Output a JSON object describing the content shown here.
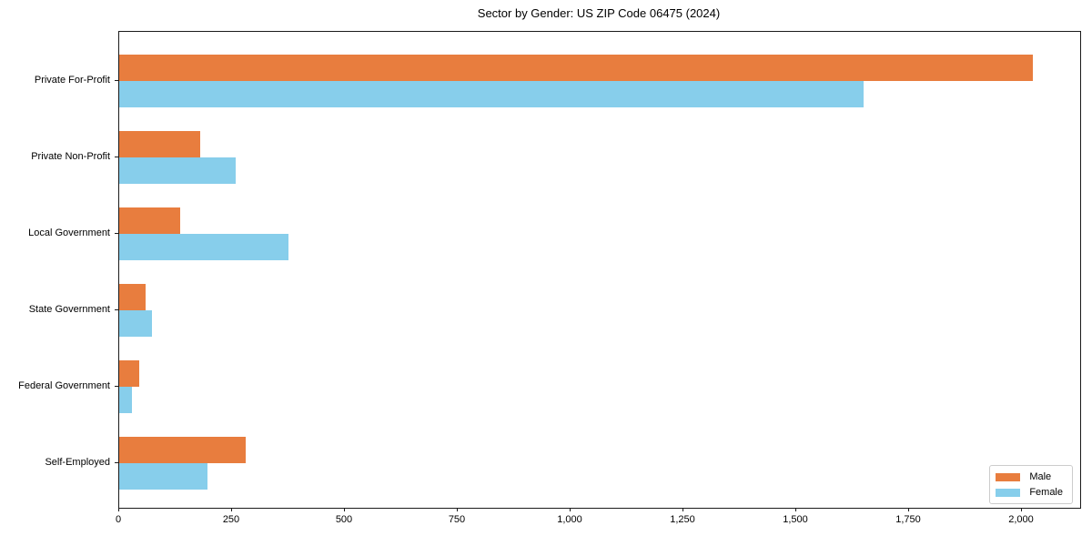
{
  "chart_data": {
    "type": "bar",
    "orientation": "horizontal",
    "title": "Sector by Gender: US ZIP Code 06475 (2024)",
    "categories": [
      "Private For-Profit",
      "Private Non-Profit",
      "Local Government",
      "State Government",
      "Federal Government",
      "Self-Employed"
    ],
    "series": [
      {
        "name": "Male",
        "color": "#e87d3e",
        "values": [
          2025,
          180,
          135,
          58,
          45,
          280
        ]
      },
      {
        "name": "Female",
        "color": "#87ceeb",
        "values": [
          1650,
          257,
          375,
          72,
          28,
          195
        ]
      }
    ],
    "xlabel": "",
    "ylabel": "",
    "xlim": [
      0,
      2129
    ],
    "xticks": [
      0,
      250,
      500,
      750,
      1000,
      1250,
      1500,
      1750,
      2000
    ],
    "xtick_labels": [
      "0",
      "250",
      "500",
      "750",
      "1,000",
      "1,250",
      "1,500",
      "1,750",
      "2,000"
    ],
    "grid": false,
    "legend": {
      "position": "lower right"
    },
    "background_color": "#ffffff",
    "axis_color": "#1a1a1a"
  }
}
